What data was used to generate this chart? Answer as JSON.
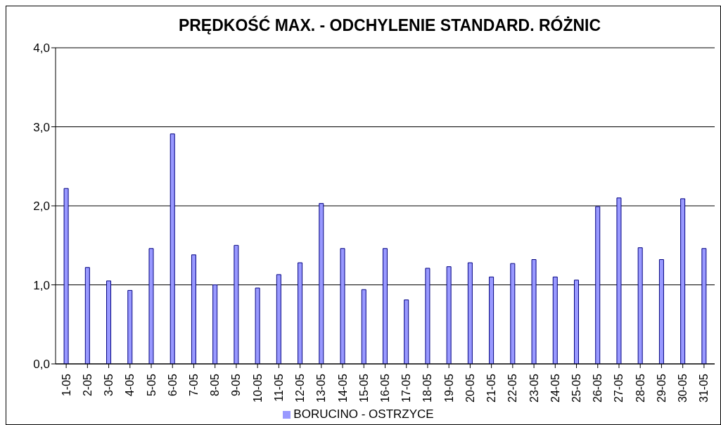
{
  "chart_data": {
    "type": "bar",
    "title": "PRĘDKOŚĆ MAX. - ODCHYLENIE STANDARD. RÓŻNIC",
    "categories": [
      "1-05",
      "2-05",
      "3-05",
      "4-05",
      "5-05",
      "6-05",
      "7-05",
      "8-05",
      "9-05",
      "10-05",
      "11-05",
      "12-05",
      "13-05",
      "14-05",
      "15-05",
      "16-05",
      "17-05",
      "18-05",
      "19-05",
      "20-05",
      "21-05",
      "22-05",
      "23-05",
      "24-05",
      "25-05",
      "26-05",
      "27-05",
      "28-05",
      "29-05",
      "30-05",
      "31-05"
    ],
    "series": [
      {
        "name": "BORUCINO - OSTRZYCE",
        "color": "#9999ff",
        "values": [
          2.22,
          1.22,
          1.05,
          0.93,
          1.46,
          2.91,
          1.38,
          1.0,
          1.5,
          0.96,
          1.13,
          1.28,
          2.03,
          1.46,
          0.94,
          1.46,
          0.81,
          1.21,
          1.23,
          1.28,
          1.1,
          1.27,
          1.32,
          1.1,
          1.06,
          1.99,
          2.1,
          1.47,
          1.32,
          2.09,
          1.46
        ]
      }
    ],
    "ylim": [
      0,
      4
    ],
    "yticks": [
      {
        "value": 0,
        "label": "0,0"
      },
      {
        "value": 1,
        "label": "1,0"
      },
      {
        "value": 2,
        "label": "2,0"
      },
      {
        "value": 3,
        "label": "3,0"
      },
      {
        "value": 4,
        "label": "4,0"
      }
    ],
    "grid": "y",
    "legend": "bottom"
  }
}
